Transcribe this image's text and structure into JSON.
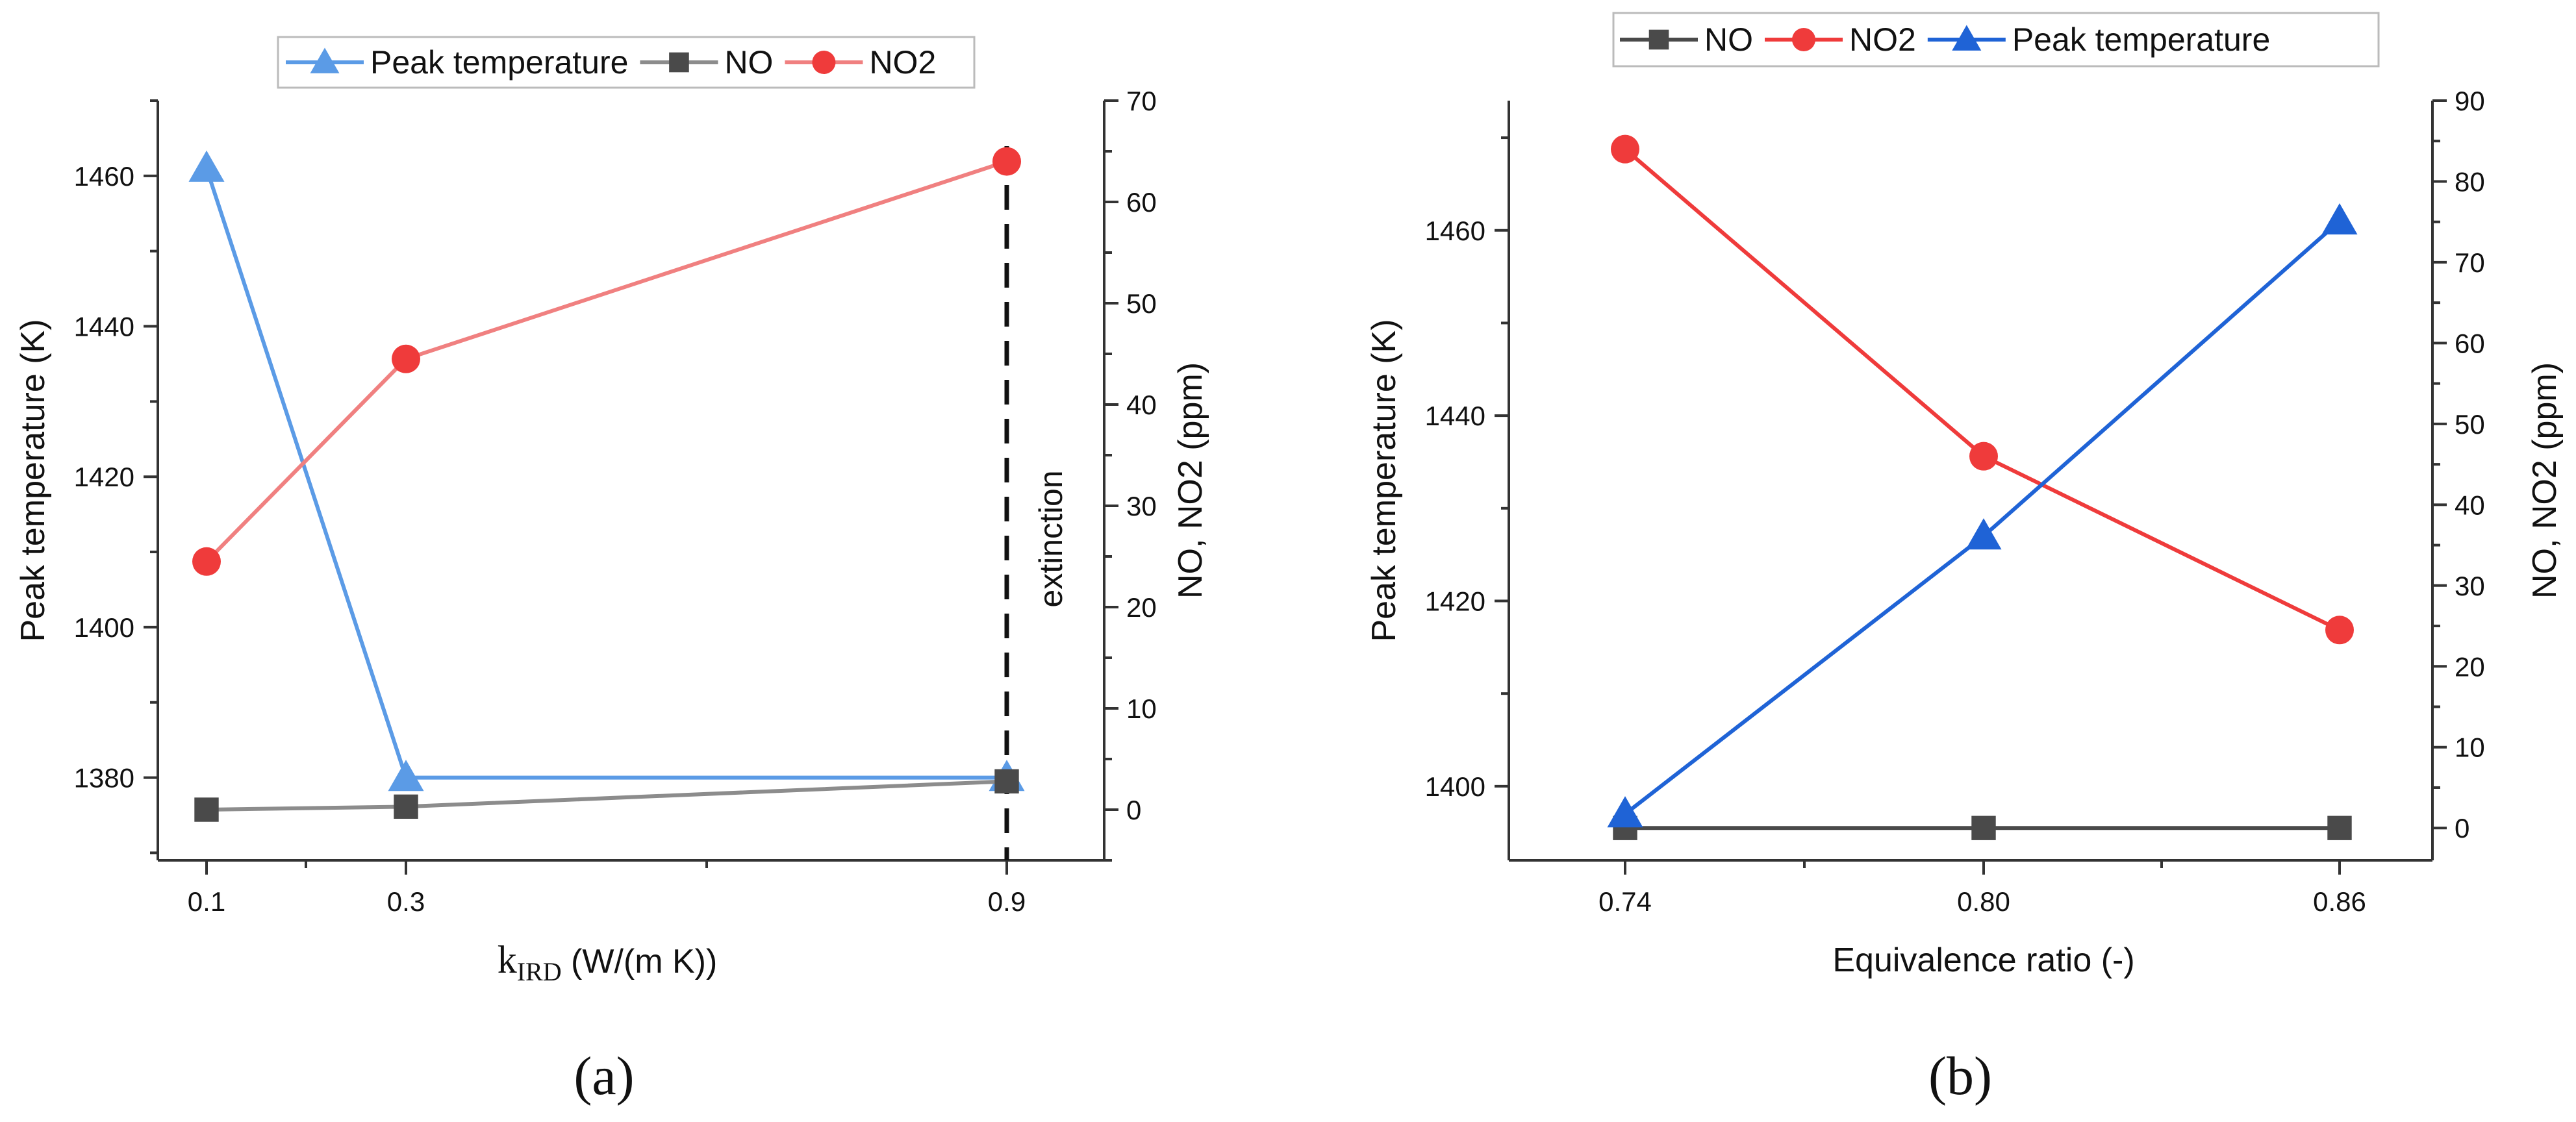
{
  "chart_data": [
    {
      "type": "line",
      "panel_label": "(a)",
      "x_tick_labels": [
        "0.1",
        "0.3",
        "0.9"
      ],
      "xlabel_main": "k",
      "xlabel_sub": "IRD",
      "xlabel_units": " (W/(m K))",
      "ylabel_left": "Peak temperature (K)",
      "ylabel_right": "NO, NO2 (ppm)",
      "ylim_left": [
        1369,
        1470
      ],
      "ylim_right": [
        -5,
        70
      ],
      "yticks_left": [
        1380,
        1400,
        1420,
        1440,
        1460
      ],
      "yticks_right": [
        0,
        10,
        20,
        30,
        40,
        50,
        60,
        70
      ],
      "annotation": "extinction",
      "annotation_x": "0.9",
      "legend": [
        "Peak temperature",
        "NO",
        "NO2"
      ],
      "series": [
        {
          "name": "Peak temperature",
          "axis": "left",
          "marker": "triangle",
          "color": "#5b9be6",
          "values": [
            1461,
            1380,
            1380
          ]
        },
        {
          "name": "NO",
          "axis": "right",
          "marker": "square",
          "color": "#4a4a4a",
          "line_color": "#8c8c8c",
          "values": [
            0,
            0.3,
            2.8
          ]
        },
        {
          "name": "NO2",
          "axis": "right",
          "marker": "circle",
          "color": "#ef3b3b",
          "line_color": "#f08080",
          "values": [
            24.5,
            44.5,
            64
          ]
        }
      ]
    },
    {
      "type": "line",
      "panel_label": "(b)",
      "x": [
        0.74,
        0.8,
        0.86
      ],
      "x_tick_labels": [
        "0.74",
        "0.80",
        "0.86"
      ],
      "xlabel": "Equivalence ratio (-)",
      "ylabel_left": "Peak temperature (K)",
      "ylabel_right": "NO, NO2 (ppm)",
      "ylim_left": [
        1392,
        1474
      ],
      "ylim_right": [
        -4,
        90
      ],
      "yticks_left": [
        1400,
        1420,
        1440,
        1460
      ],
      "yticks_right": [
        0,
        10,
        20,
        30,
        40,
        50,
        60,
        70,
        80,
        90
      ],
      "legend": [
        "NO",
        "NO2",
        "Peak temperature"
      ],
      "series": [
        {
          "name": "NO",
          "axis": "right",
          "marker": "square",
          "color": "#4a4a4a",
          "values": [
            0,
            0,
            0
          ]
        },
        {
          "name": "NO2",
          "axis": "right",
          "marker": "circle",
          "color": "#ef3b3b",
          "values": [
            84,
            46,
            24.5
          ]
        },
        {
          "name": "Peak temperature",
          "axis": "left",
          "marker": "triangle",
          "color": "#1f63d6",
          "values": [
            1397,
            1427,
            1461
          ]
        }
      ]
    }
  ]
}
